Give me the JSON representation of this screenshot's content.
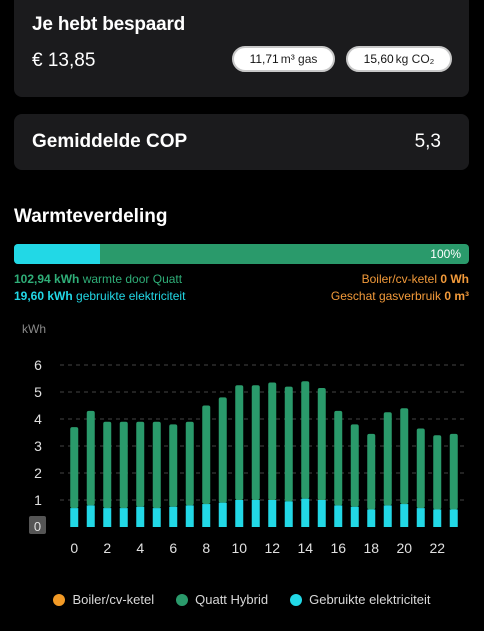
{
  "savings": {
    "title": "Je hebt bespaard",
    "amount": "€ 13,85",
    "gas_value": "11,71",
    "gas_unit_html": "m³ gas",
    "co2_value": "15,60",
    "co2_unit": "kg CO₂"
  },
  "cop": {
    "label": "Gemiddelde COP",
    "value": "5,3"
  },
  "heat": {
    "title": "Warmteverdeling",
    "percent": "100%",
    "elec_fraction": 0.19,
    "quatt_value": "102,94 kWh",
    "quatt_text": " warmte door Quatt",
    "elec_value": "19,60 kWh",
    "elec_text": " gebruikte elektriciteit",
    "boiler_text": "Boiler/cv-ketel ",
    "boiler_value": "0 Wh",
    "gas_text": "Geschat gasverbruik ",
    "gas_value": "0 m³"
  },
  "colors": {
    "boiler": "#f29a26",
    "quatt": "#2a9a6b",
    "electricity": "#22d8e6"
  },
  "chart_data": {
    "type": "bar",
    "ylabel": "kWh",
    "ylim": [
      0,
      6
    ],
    "yticks": [
      "0",
      "1",
      "2",
      "3",
      "4",
      "5",
      "6"
    ],
    "xticks": [
      "0",
      "2",
      "4",
      "6",
      "8",
      "10",
      "12",
      "14",
      "16",
      "18",
      "20",
      "22"
    ],
    "categories": [
      0,
      1,
      2,
      3,
      4,
      5,
      6,
      7,
      8,
      9,
      10,
      11,
      12,
      13,
      14,
      15,
      16,
      17,
      18,
      19,
      20,
      21,
      22,
      23
    ],
    "series": [
      {
        "name": "Boiler/cv-ketel",
        "values": [
          0,
          0,
          0,
          0,
          0,
          0,
          0,
          0,
          0,
          0,
          0,
          0,
          0,
          0,
          0,
          0,
          0,
          0,
          0,
          0,
          0,
          0,
          0,
          0
        ]
      },
      {
        "name": "Quatt Hybrid",
        "values": [
          3.7,
          4.3,
          3.9,
          3.9,
          3.9,
          3.9,
          3.8,
          3.9,
          4.5,
          4.8,
          5.25,
          5.25,
          5.35,
          5.2,
          5.4,
          5.15,
          4.3,
          3.8,
          3.45,
          4.25,
          4.4,
          3.65,
          3.4,
          3.45
        ]
      },
      {
        "name": "Gebruikte elektriciteit",
        "values": [
          0.7,
          0.8,
          0.7,
          0.7,
          0.75,
          0.7,
          0.75,
          0.8,
          0.85,
          0.9,
          1.0,
          1.0,
          1.0,
          0.95,
          1.05,
          1.0,
          0.8,
          0.75,
          0.65,
          0.8,
          0.85,
          0.7,
          0.65,
          0.65
        ]
      }
    ],
    "grid": "dashed horizontal",
    "legend": "bottom"
  },
  "legend": {
    "boiler": "Boiler/cv-ketel",
    "quatt": "Quatt Hybrid",
    "electricity": "Gebruikte elektriciteit"
  }
}
